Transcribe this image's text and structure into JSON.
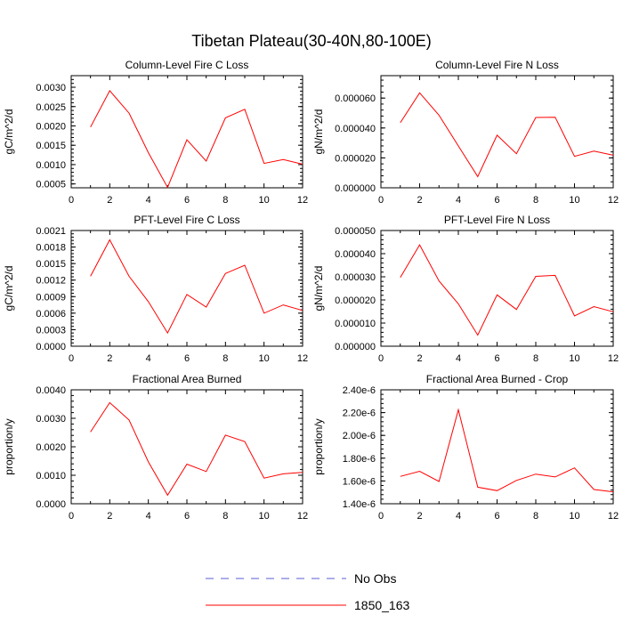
{
  "title": "Tibetan Plateau(30-40N,80-100E)",
  "legend": [
    {
      "label": "No Obs",
      "color": "#5b5bd6",
      "dashed": true
    },
    {
      "label": "1850_163",
      "color": "#ff0000",
      "dashed": false
    }
  ],
  "chart_data": [
    {
      "type": "line",
      "title": "Column-Level Fire C Loss",
      "ylabel": "gC/m^2/d",
      "xlim": [
        0,
        12
      ],
      "ylim": [
        0.0004,
        0.0033
      ],
      "xticks": [
        "0",
        "2",
        "4",
        "6",
        "8",
        "10",
        "12"
      ],
      "yticks": [
        0.0005,
        0.001,
        0.0015,
        0.002,
        0.0025,
        0.003
      ],
      "ytick_labels": [
        "0.0005",
        "0.0010",
        "0.0015",
        "0.0020",
        "0.0025",
        "0.0030"
      ],
      "x": [
        1,
        2,
        3,
        4,
        5,
        6,
        7,
        8,
        9,
        10,
        11,
        12
      ],
      "series": [
        {
          "name": "1850_163",
          "values": [
            0.00197,
            0.00291,
            0.00233,
            0.00131,
            0.00041,
            0.00164,
            0.00109,
            0.00221,
            0.00243,
            0.00103,
            0.00113,
            0.00101
          ]
        }
      ]
    },
    {
      "type": "line",
      "title": "Column-Level Fire N Loss",
      "ylabel": "gN/m^2/d",
      "xlim": [
        0,
        12
      ],
      "ylim": [
        0,
        7.5e-05
      ],
      "xticks": [
        "0",
        "2",
        "4",
        "6",
        "8",
        "10",
        "12"
      ],
      "yticks": [
        0,
        2e-05,
        4e-05,
        6e-05
      ],
      "ytick_labels": [
        "0.000000",
        "0.000020",
        "0.000040",
        "0.000060"
      ],
      "x": [
        1,
        2,
        3,
        4,
        5,
        6,
        7,
        8,
        9,
        10,
        11,
        12
      ],
      "series": [
        {
          "name": "1850_163",
          "values": [
            4.35e-05,
            6.35e-05,
            4.85e-05,
            2.8e-05,
            7.5e-06,
            3.52e-05,
            2.28e-05,
            4.7e-05,
            4.72e-05,
            2.1e-05,
            2.45e-05,
            2.18e-05
          ]
        }
      ]
    },
    {
      "type": "line",
      "title": "PFT-Level Fire C Loss",
      "ylabel": "gC/m^2/d",
      "xlim": [
        0,
        12
      ],
      "ylim": [
        0,
        0.0021
      ],
      "xticks": [
        "0",
        "2",
        "4",
        "6",
        "8",
        "10",
        "12"
      ],
      "yticks": [
        0,
        0.0003,
        0.0006,
        0.0009,
        0.0012,
        0.0015,
        0.0018,
        0.0021
      ],
      "ytick_labels": [
        "0.0000",
        "0.0003",
        "0.0006",
        "0.0009",
        "0.0012",
        "0.0015",
        "0.0018",
        "0.0021"
      ],
      "x": [
        1,
        2,
        3,
        4,
        5,
        6,
        7,
        8,
        9,
        10,
        11,
        12
      ],
      "series": [
        {
          "name": "1850_163",
          "values": [
            0.00127,
            0.00193,
            0.00127,
            0.00081,
            0.00024,
            0.00094,
            0.00071,
            0.00132,
            0.00147,
            0.0006,
            0.00075,
            0.00065
          ]
        }
      ]
    },
    {
      "type": "line",
      "title": "PFT-Level Fire N Loss",
      "ylabel": "gN/m^2/d",
      "xlim": [
        0,
        12
      ],
      "ylim": [
        0,
        5e-05
      ],
      "xticks": [
        "0",
        "2",
        "4",
        "6",
        "8",
        "10",
        "12"
      ],
      "yticks": [
        0,
        1e-05,
        2e-05,
        3e-05,
        4e-05,
        5e-05
      ],
      "ytick_labels": [
        "0.000000",
        "0.000010",
        "0.000020",
        "0.000030",
        "0.000040",
        "0.000050"
      ],
      "x": [
        1,
        2,
        3,
        4,
        5,
        6,
        7,
        8,
        9,
        10,
        11,
        12
      ],
      "series": [
        {
          "name": "1850_163",
          "values": [
            2.97e-05,
            4.38e-05,
            2.82e-05,
            1.83e-05,
            4.8e-06,
            2.22e-05,
            1.59e-05,
            3.02e-05,
            3.06e-05,
            1.31e-05,
            1.71e-05,
            1.49e-05
          ]
        }
      ]
    },
    {
      "type": "line",
      "title": "Fractional Area Burned",
      "ylabel": "proportion/y",
      "xlim": [
        0,
        12
      ],
      "ylim": [
        0,
        0.004
      ],
      "xticks": [
        "0",
        "2",
        "4",
        "6",
        "8",
        "10",
        "12"
      ],
      "yticks": [
        0,
        0.001,
        0.002,
        0.003,
        0.004
      ],
      "ytick_labels": [
        "0.0000",
        "0.0010",
        "0.0020",
        "0.0030",
        "0.0040"
      ],
      "x": [
        1,
        2,
        3,
        4,
        5,
        6,
        7,
        8,
        9,
        10,
        11,
        12
      ],
      "series": [
        {
          "name": "1850_163",
          "values": [
            0.00252,
            0.00355,
            0.00294,
            0.00147,
            0.0003,
            0.00139,
            0.00113,
            0.00241,
            0.00218,
            0.0009,
            0.00105,
            0.0011
          ]
        }
      ]
    },
    {
      "type": "line",
      "title": "Fractional Area Burned - Crop",
      "ylabel": "proportion/y",
      "xlim": [
        0,
        12
      ],
      "ylim": [
        1.4e-06,
        2.4e-06
      ],
      "xticks": [
        "0",
        "2",
        "4",
        "6",
        "8",
        "10",
        "12"
      ],
      "yticks": [
        1.4e-06,
        1.6e-06,
        1.8e-06,
        2e-06,
        2.2e-06,
        2.4e-06
      ],
      "ytick_labels": [
        "1.40e-6",
        "1.60e-6",
        "1.80e-6",
        "2.00e-6",
        "2.20e-6",
        "2.40e-6"
      ],
      "x": [
        1,
        2,
        3,
        4,
        5,
        6,
        7,
        8,
        9,
        10,
        11,
        12
      ],
      "series": [
        {
          "name": "1850_163",
          "values": [
            1.64e-06,
            1.685e-06,
            1.595e-06,
            2.225e-06,
            1.545e-06,
            1.515e-06,
            1.605e-06,
            1.66e-06,
            1.635e-06,
            1.715e-06,
            1.525e-06,
            1.505e-06
          ]
        }
      ]
    }
  ]
}
